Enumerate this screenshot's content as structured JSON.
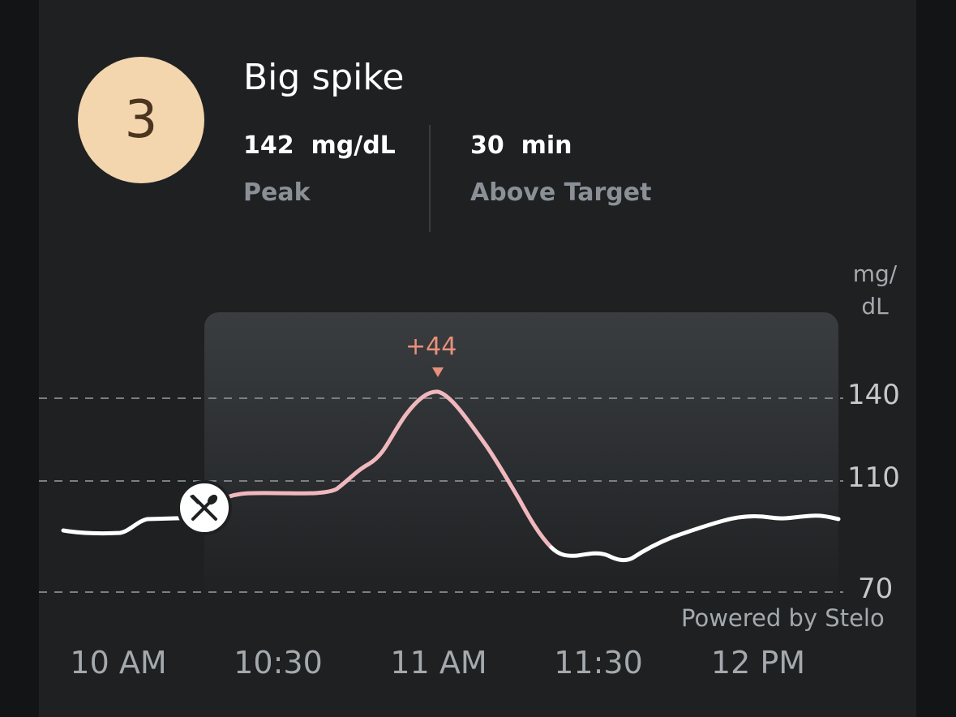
{
  "event": {
    "score": "3",
    "title": "Big spike"
  },
  "stats": {
    "peak_value": "142",
    "peak_unit": "mg/dL",
    "peak_label": "Peak",
    "above_value": "30",
    "above_unit": "min",
    "above_label": "Above Target"
  },
  "colors": {
    "score_bg": "#f3d6ad",
    "spike_line": "#f0b8bd",
    "normal_line": "#ffffff",
    "delta_text": "#e8907c"
  },
  "chart_data": {
    "type": "line",
    "y_unit": "mg/\ndL",
    "y_ticks": [
      "140",
      "110",
      "70"
    ],
    "x_ticks": [
      "10 AM",
      "10:30",
      "11 AM",
      "11:30",
      "12 PM"
    ],
    "peak_delta": "+44",
    "meal_marker_icon": "fork-and-spoon-icon",
    "highlight_window": "meal response period",
    "footer": "Powered by Stelo",
    "series": [
      {
        "values_mg_dl": [
          [
            9.65,
            95
          ],
          [
            9.8,
            95
          ],
          [
            9.95,
            97
          ],
          [
            10.15,
            99
          ],
          [
            10.3,
            104
          ],
          [
            10.45,
            104
          ],
          [
            10.55,
            104.5
          ],
          [
            10.65,
            110
          ],
          [
            10.75,
            114
          ],
          [
            10.85,
            125
          ],
          [
            10.95,
            137
          ],
          [
            11.0,
            141
          ],
          [
            11.05,
            139
          ],
          [
            11.15,
            125
          ],
          [
            11.25,
            108
          ],
          [
            11.35,
            90
          ],
          [
            11.45,
            87
          ],
          [
            11.55,
            86
          ],
          [
            11.65,
            87
          ],
          [
            11.75,
            92
          ],
          [
            11.9,
            96
          ],
          [
            12.05,
            99
          ],
          [
            12.2,
            98
          ],
          [
            12.35,
            99
          ],
          [
            12.45,
            98
          ]
        ]
      }
    ]
  }
}
